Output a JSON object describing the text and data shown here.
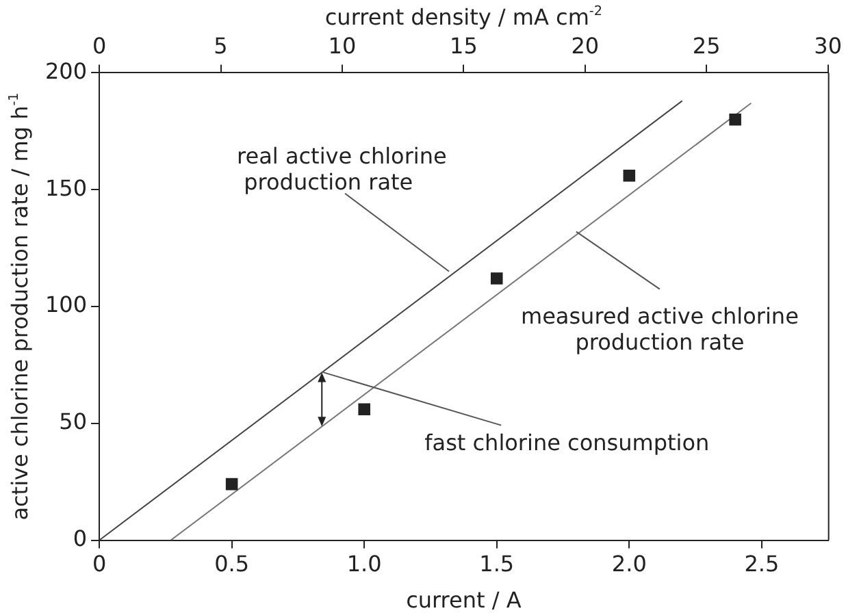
{
  "chart_data": {
    "type": "scatter",
    "xlabel": "current / A",
    "ylabel": "active chlorine production rate / mg h$^{-1}$",
    "x2label": "current density / mA cm$^{-2}$",
    "series": [
      {
        "type": "scatter",
        "x": [
          0.5,
          1.0,
          1.5,
          2.0,
          2.4
        ],
        "values": [
          24,
          56,
          112,
          156,
          180
        ],
        "color": "#222222",
        "marker": "square"
      },
      {
        "type": "line",
        "x": [
          0,
          2.2
        ],
        "values": [
          0,
          188
        ],
        "color": "#444444",
        "marker": "none"
      },
      {
        "type": "line",
        "x": [
          0.27,
          2.46
        ],
        "values": [
          0,
          187
        ],
        "color": "#777777",
        "marker": "none"
      }
    ],
    "xlim": [
      0,
      2.75
    ],
    "xticks": [
      0,
      0.5,
      {
        "value": 1,
        "label": "1.0"
      },
      1.5,
      {
        "value": 2,
        "label": "2.0"
      },
      2.5
    ],
    "x2lim": [
      0,
      30
    ],
    "x2ticks": [
      0,
      5,
      10,
      15,
      20,
      25,
      30
    ],
    "ylim": [
      0,
      200
    ],
    "yticks": [
      0,
      50,
      100,
      150,
      200
    ],
    "annotations": [
      {
        "text": "real active chlorine\n production rate",
        "x": 1.32,
        "y": 115
      },
      {
        "text": "measured active chlorine\nproduction rate",
        "x": 1.8,
        "y": 132
      },
      {
        "text": "fast chlorine consumption",
        "x": 0.84,
        "y": 72
      }
    ],
    "grid": false,
    "legend": false
  }
}
